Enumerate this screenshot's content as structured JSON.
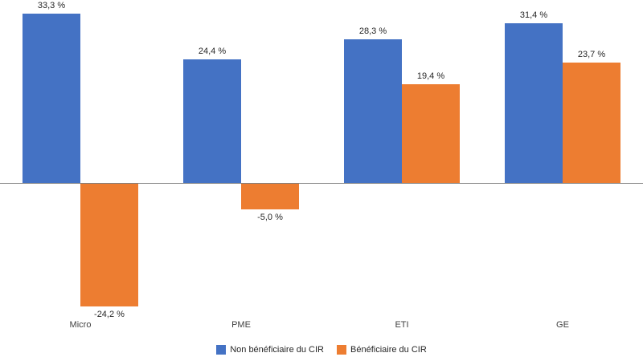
{
  "chart_data": {
    "type": "bar",
    "categories": [
      "Micro",
      "PME",
      "ETI",
      "GE"
    ],
    "series": [
      {
        "name": "Non bénéficiaire du CIR",
        "color": "#4472C4",
        "values": [
          33.3,
          24.4,
          28.3,
          31.4
        ],
        "labels": [
          "33,3 %",
          "24,4 %",
          "28,3 %",
          "31,4 %"
        ]
      },
      {
        "name": "Bénéficiaire du CIR",
        "color": "#ED7D31",
        "values": [
          -24.2,
          -5.0,
          19.4,
          23.7
        ],
        "labels": [
          "-24,2 %",
          "-5,0 %",
          "19,4 %",
          "23,7 %"
        ]
      }
    ],
    "title": "",
    "xlabel": "",
    "ylabel": "",
    "ylim": [
      -30,
      36
    ],
    "grid": false,
    "axis_line_color": "#808080",
    "value_label_format": "comma-decimal percent",
    "legend_position": "bottom-center"
  }
}
